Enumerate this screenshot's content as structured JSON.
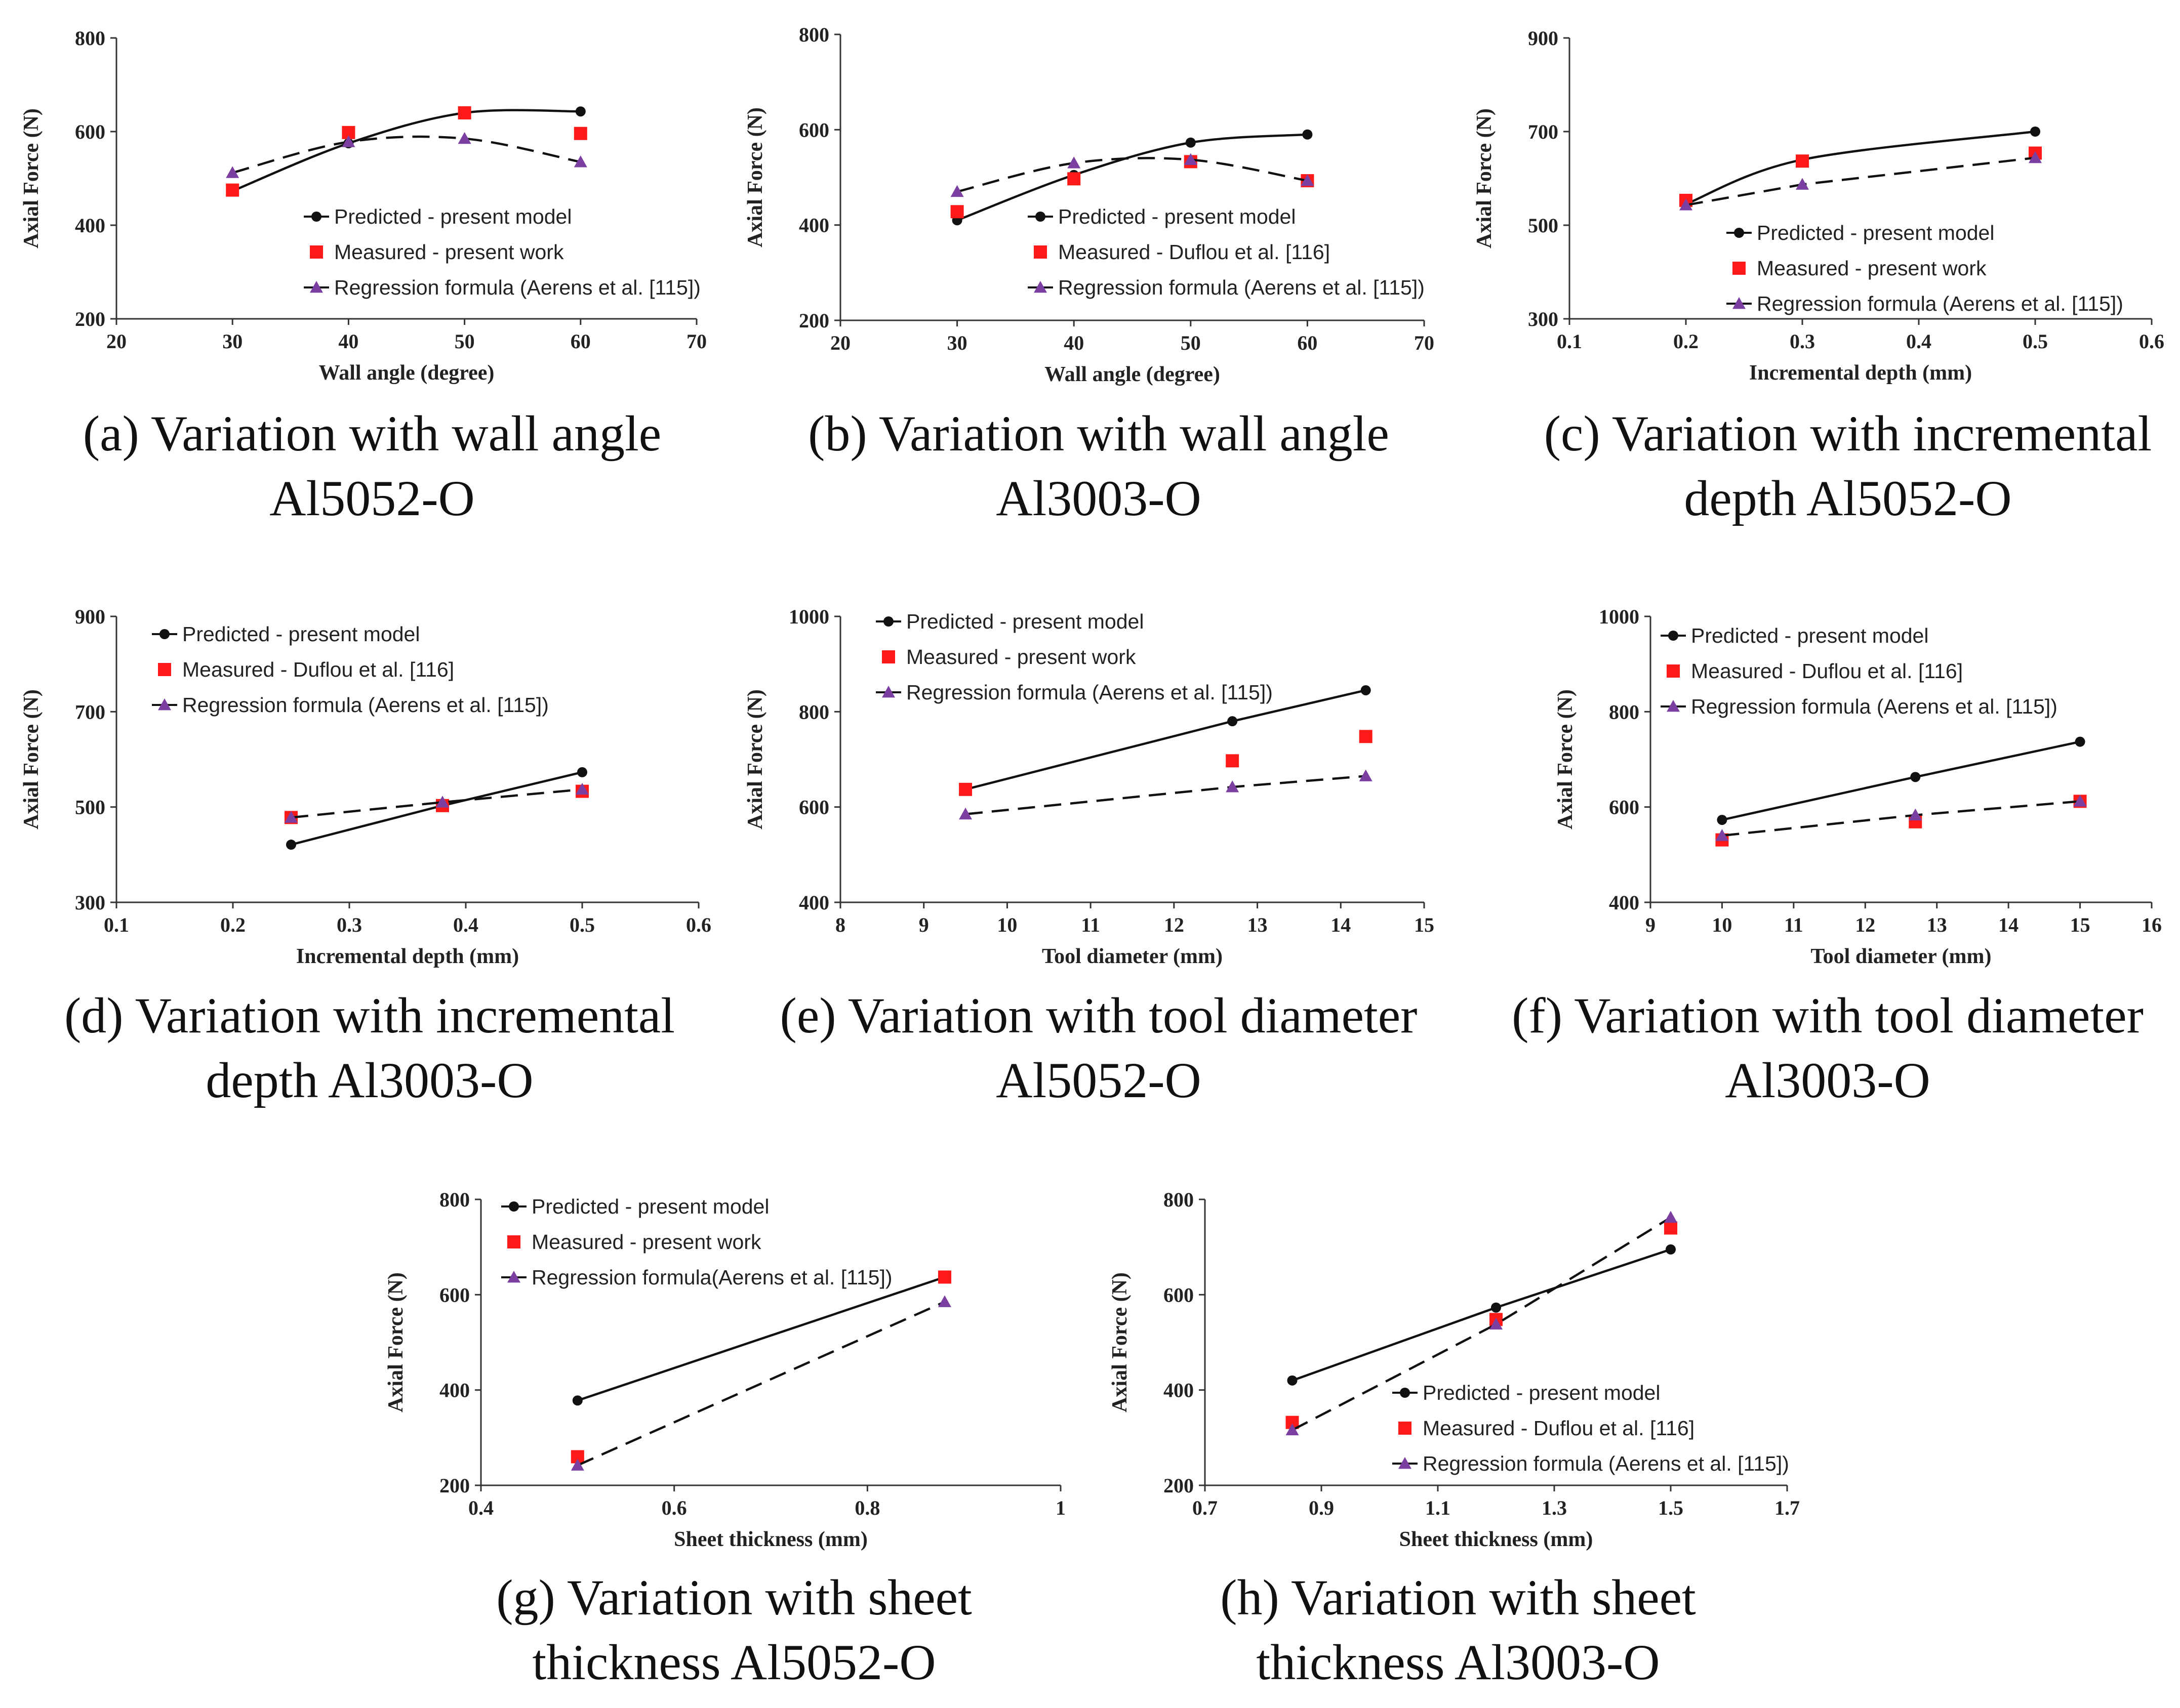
{
  "colors": {
    "predicted": "#111111",
    "measured": "#ff1a1a",
    "regression": "#7a3fa0",
    "axis": "#333333"
  },
  "chart_data": [
    {
      "id": "a",
      "type": "line",
      "caption": [
        "(a) Variation with wall angle",
        "Al5052-O"
      ],
      "xlabel": "Wall angle (degree)",
      "ylabel": "Axial Force (N)",
      "xlim": [
        20,
        70
      ],
      "ylim": [
        200,
        800
      ],
      "xticks": [
        20,
        30,
        40,
        50,
        60,
        70
      ],
      "xtick_labels": [
        "20",
        "30",
        "40",
        "50",
        "60",
        "70"
      ],
      "yticks": [
        200,
        400,
        600,
        800
      ],
      "ytick_labels": [
        "200",
        "400",
        "600",
        "800"
      ],
      "legend": "lower-center",
      "series": [
        {
          "name": "Predicted - present model",
          "kind": "predicted",
          "smooth": true,
          "x": [
            30,
            40,
            50,
            60
          ],
          "y": [
            473,
            575,
            640,
            643
          ]
        },
        {
          "name": "Measured - present work",
          "kind": "measured",
          "x": [
            30,
            40,
            50,
            60
          ],
          "y": [
            475,
            598,
            640,
            596
          ]
        },
        {
          "name": "Regression formula (Aerens et al. [115])",
          "kind": "regression",
          "smooth": true,
          "x": [
            30,
            40,
            50,
            60
          ],
          "y": [
            512,
            578,
            585,
            535
          ]
        }
      ]
    },
    {
      "id": "b",
      "type": "line",
      "caption": [
        "(b) Variation with wall angle",
        "Al3003-O"
      ],
      "xlabel": "Wall angle (degree)",
      "ylabel": "Axial Force (N)",
      "xlim": [
        20,
        70
      ],
      "ylim": [
        200,
        800
      ],
      "xticks": [
        20,
        30,
        40,
        50,
        60,
        70
      ],
      "xtick_labels": [
        "20",
        "30",
        "40",
        "50",
        "60",
        "70"
      ],
      "yticks": [
        200,
        400,
        600,
        800
      ],
      "ytick_labels": [
        "200",
        "400",
        "600",
        "800"
      ],
      "legend": "lower-center",
      "series": [
        {
          "name": "Predicted - present model",
          "kind": "predicted",
          "smooth": true,
          "x": [
            30,
            40,
            50,
            60
          ],
          "y": [
            410,
            505,
            573,
            590
          ]
        },
        {
          "name": "Measured - Duflou et al. [116]",
          "kind": "measured",
          "x": [
            30,
            40,
            50,
            60
          ],
          "y": [
            428,
            497,
            533,
            493
          ]
        },
        {
          "name": "Regression formula (Aerens et al. [115])",
          "kind": "regression",
          "smooth": true,
          "x": [
            30,
            40,
            50,
            60
          ],
          "y": [
            470,
            530,
            537,
            493
          ]
        }
      ]
    },
    {
      "id": "c",
      "type": "line",
      "caption": [
        "(c) Variation with incremental",
        "depth Al5052-O"
      ],
      "xlabel": "Incremental depth (mm)",
      "ylabel": "Axial Force (N)",
      "xlim": [
        0.1,
        0.6
      ],
      "ylim": [
        300,
        900
      ],
      "xticks": [
        0.1,
        0.2,
        0.3,
        0.4,
        0.5,
        0.6
      ],
      "xtick_labels": [
        "0.1",
        "0.2",
        "0.3",
        "0.4",
        "0.5",
        "0.6"
      ],
      "yticks": [
        300,
        500,
        700,
        900
      ],
      "ytick_labels": [
        "300",
        "500",
        "700",
        "900"
      ],
      "legend": "lower-center",
      "series": [
        {
          "name": "Predicted - present model",
          "kind": "predicted",
          "smooth": true,
          "x": [
            0.2,
            0.3,
            0.5
          ],
          "y": [
            545,
            640,
            700
          ]
        },
        {
          "name": "Measured - present work",
          "kind": "measured",
          "x": [
            0.2,
            0.3,
            0.5
          ],
          "y": [
            553,
            637,
            654
          ]
        },
        {
          "name": "Regression formula (Aerens et al. [115])",
          "kind": "regression",
          "x": [
            0.2,
            0.3,
            0.5
          ],
          "y": [
            543,
            587,
            644
          ]
        }
      ]
    },
    {
      "id": "d",
      "type": "line",
      "caption": [
        "(d) Variation with incremental",
        "depth Al3003-O"
      ],
      "xlabel": "Incremental depth (mm)",
      "ylabel": "Axial Force (N)",
      "xlim": [
        0.1,
        0.6
      ],
      "ylim": [
        300,
        900
      ],
      "xticks": [
        0.1,
        0.2,
        0.3,
        0.4,
        0.5,
        0.6
      ],
      "xtick_labels": [
        "0.1",
        "0.2",
        "0.3",
        "0.4",
        "0.5",
        "0.6"
      ],
      "yticks": [
        300,
        500,
        700,
        900
      ],
      "ytick_labels": [
        "300",
        "500",
        "700",
        "900"
      ],
      "legend": "top-left",
      "series": [
        {
          "name": "Predicted - present model",
          "kind": "predicted",
          "x": [
            0.25,
            0.38,
            0.5
          ],
          "y": [
            421,
            503,
            573
          ]
        },
        {
          "name": "Measured - Duflou et al.  [116]",
          "kind": "measured",
          "x": [
            0.25,
            0.38,
            0.5
          ],
          "y": [
            478,
            503,
            533
          ]
        },
        {
          "name": "Regression formula (Aerens et al. [115])",
          "kind": "regression",
          "x": [
            0.25,
            0.38,
            0.5
          ],
          "y": [
            478,
            510,
            537
          ]
        }
      ]
    },
    {
      "id": "e",
      "type": "line",
      "caption": [
        "(e) Variation with tool diameter",
        "Al5052-O"
      ],
      "xlabel": "Tool diameter (mm)",
      "ylabel": "Axial Force (N)",
      "xlim": [
        8,
        15
      ],
      "ylim": [
        400,
        1000
      ],
      "xticks": [
        8,
        9,
        10,
        11,
        12,
        13,
        14,
        15
      ],
      "xtick_labels": [
        "8",
        "9",
        "10",
        "11",
        "12",
        "13",
        "14",
        "15"
      ],
      "yticks": [
        400,
        600,
        800,
        1000
      ],
      "ytick_labels": [
        "400",
        "600",
        "800",
        "1000"
      ],
      "legend": "top-left",
      "series": [
        {
          "name": "Predicted - present model",
          "kind": "predicted",
          "x": [
            9.5,
            12.7,
            14.3
          ],
          "y": [
            637,
            780,
            845
          ]
        },
        {
          "name": "Measured - present work",
          "kind": "measured",
          "x": [
            9.5,
            12.7,
            14.3
          ],
          "y": [
            637,
            697,
            748
          ]
        },
        {
          "name": "Regression formula (Aerens et al. [115])",
          "kind": "regression",
          "x": [
            9.5,
            12.7,
            14.3
          ],
          "y": [
            585,
            642,
            665
          ]
        }
      ]
    },
    {
      "id": "f",
      "type": "line",
      "caption": [
        "(f) Variation with tool diameter",
        "Al3003-O"
      ],
      "xlabel": "Tool diameter (mm)",
      "ylabel": "Axial Force (N)",
      "xlim": [
        9,
        16
      ],
      "ylim": [
        400,
        1000
      ],
      "xticks": [
        9,
        10,
        11,
        12,
        13,
        14,
        15,
        16
      ],
      "xtick_labels": [
        "9",
        "10",
        "11",
        "12",
        "13",
        "14",
        "15",
        "16"
      ],
      "yticks": [
        400,
        600,
        800,
        1000
      ],
      "ytick_labels": [
        "400",
        "600",
        "800",
        "1000"
      ],
      "legend": "top-left",
      "series": [
        {
          "name": "Predicted - present model",
          "kind": "predicted",
          "x": [
            10,
            12.7,
            15
          ],
          "y": [
            573,
            663,
            737
          ]
        },
        {
          "name": "Measured - Duflou et al. [116]",
          "kind": "measured",
          "x": [
            10,
            12.7,
            15
          ],
          "y": [
            531,
            569,
            612
          ]
        },
        {
          "name": "Regression formula (Aerens et al. [115])",
          "kind": "regression",
          "x": [
            10,
            12.7,
            15
          ],
          "y": [
            540,
            583,
            612
          ]
        }
      ]
    },
    {
      "id": "g",
      "type": "line",
      "caption": [
        "(g) Variation with sheet",
        "thickness Al5052-O"
      ],
      "xlabel": "Sheet thickness (mm)",
      "ylabel": "Axial Force (N)",
      "xlim": [
        0.4,
        1.0
      ],
      "ylim": [
        200,
        800
      ],
      "xticks": [
        0.4,
        0.6,
        0.8,
        1.0
      ],
      "xtick_labels": [
        "0.4",
        "0.6",
        "0.8",
        "1"
      ],
      "yticks": [
        200,
        400,
        600,
        800
      ],
      "ytick_labels": [
        "200",
        "400",
        "600",
        "800"
      ],
      "legend": "top-left",
      "series": [
        {
          "name": "Predicted - present model",
          "kind": "predicted",
          "x": [
            0.5,
            0.88
          ],
          "y": [
            378,
            637
          ]
        },
        {
          "name": "Measured - present work",
          "kind": "measured",
          "x": [
            0.5,
            0.88
          ],
          "y": [
            260,
            637
          ]
        },
        {
          "name": "Regression formula(Aerens et al. [115])",
          "kind": "regression",
          "x": [
            0.5,
            0.88
          ],
          "y": [
            242,
            585
          ]
        }
      ]
    },
    {
      "id": "h",
      "type": "line",
      "caption": [
        "(h) Variation with sheet",
        "thickness Al3003-O"
      ],
      "xlabel": "Sheet thickness (mm)",
      "ylabel": "Axial Force (N)",
      "xlim": [
        0.7,
        1.7
      ],
      "ylim": [
        200,
        800
      ],
      "xticks": [
        0.7,
        0.9,
        1.1,
        1.3,
        1.5,
        1.7
      ],
      "xtick_labels": [
        "0.7",
        "0.9",
        "1.1",
        "1.3",
        "1.5",
        "1.7"
      ],
      "yticks": [
        200,
        400,
        600,
        800
      ],
      "ytick_labels": [
        "200",
        "400",
        "600",
        "800"
      ],
      "legend": "lower-center",
      "series": [
        {
          "name": "Predicted - present model",
          "kind": "predicted",
          "x": [
            0.85,
            1.2,
            1.5
          ],
          "y": [
            420,
            573,
            695
          ]
        },
        {
          "name": "Measured - Duflou et al. [116]",
          "kind": "measured",
          "x": [
            0.85,
            1.2,
            1.5
          ],
          "y": [
            332,
            548,
            740
          ]
        },
        {
          "name": "Regression formula (Aerens et al. [115])",
          "kind": "regression",
          "x": [
            0.85,
            1.2,
            1.5
          ],
          "y": [
            316,
            538,
            762
          ]
        }
      ]
    }
  ]
}
